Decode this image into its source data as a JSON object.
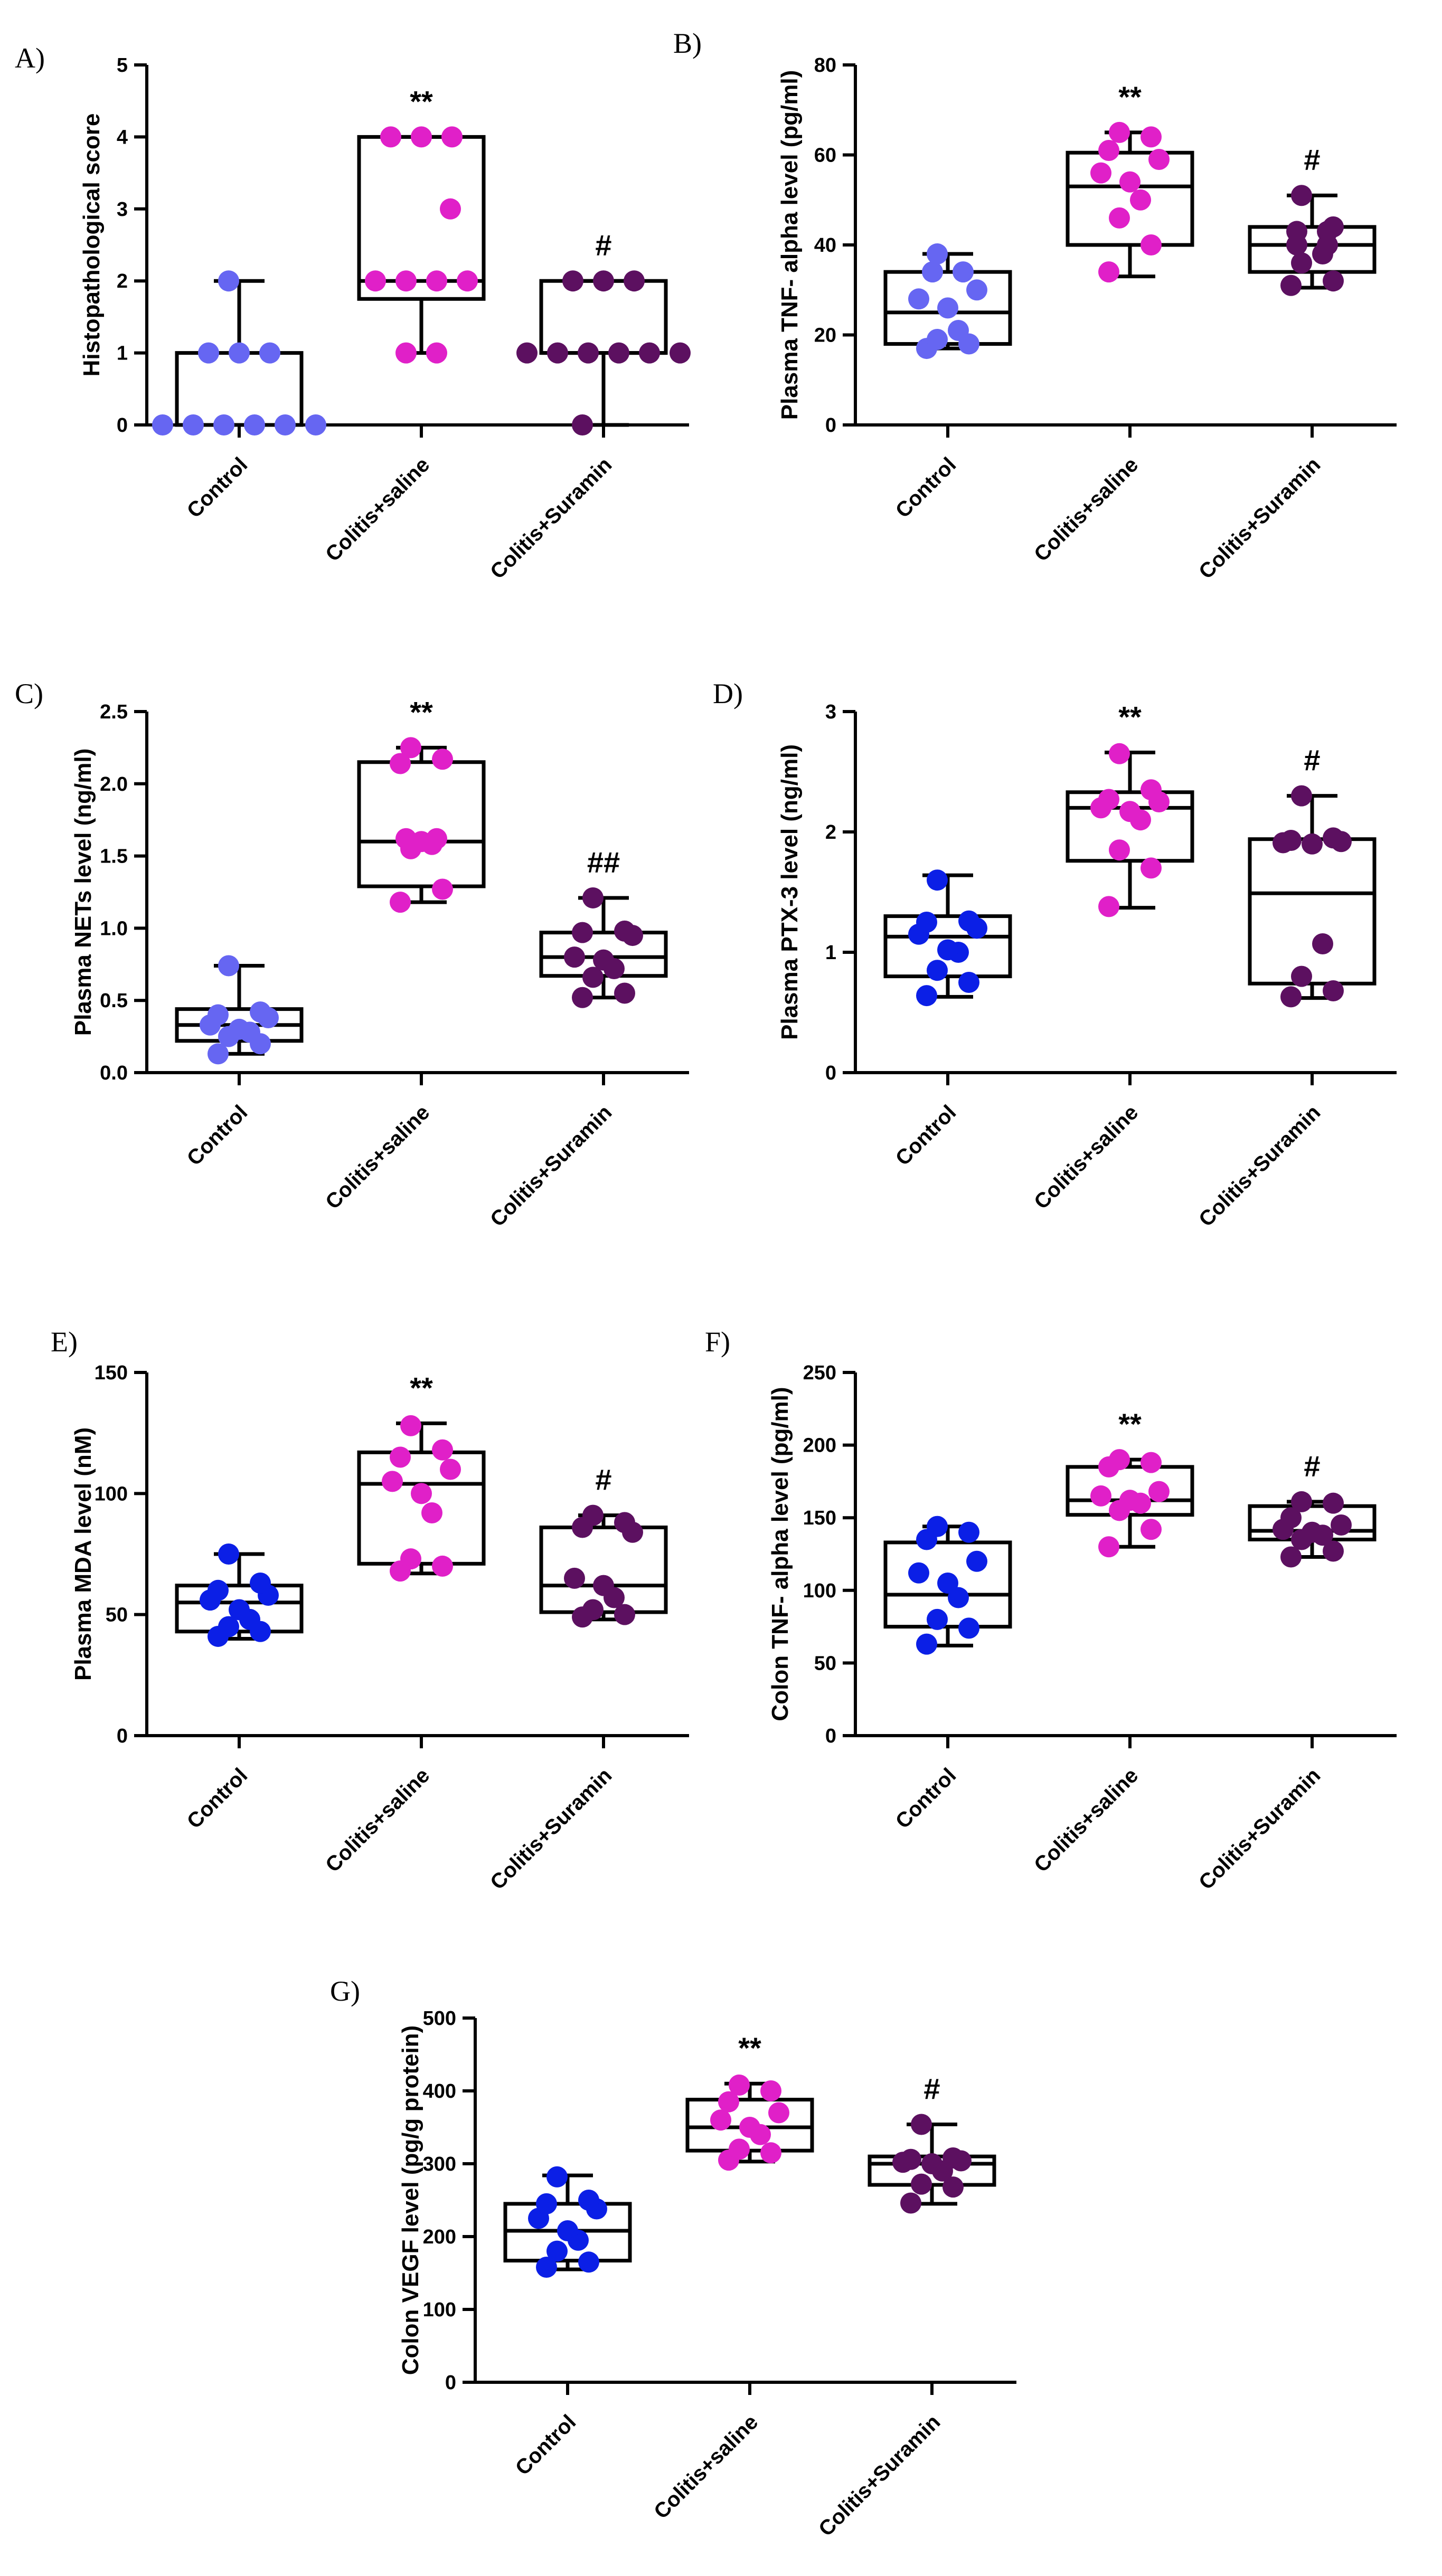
{
  "chart_data": [
    {
      "id": "A",
      "panel_label": "A)",
      "type": "box",
      "ylabel": "Histopathological score",
      "ylim": [
        0,
        5
      ],
      "yticks": [
        0,
        1,
        2,
        3,
        4,
        5
      ],
      "categories": [
        "Control",
        "Colitis+saline",
        "Colitis+Suramin"
      ],
      "colors": [
        "#6666f2",
        "#e020c8",
        "#5c1060"
      ],
      "significance": [
        "",
        "**",
        "#"
      ],
      "boxes": [
        {
          "min": 0,
          "q1": 0,
          "median": 0,
          "q3": 1,
          "max": 2
        },
        {
          "min": 1,
          "q1": 1.75,
          "median": 2,
          "q3": 4,
          "max": 4
        },
        {
          "min": 0,
          "q1": 1,
          "median": 1,
          "q3": 2,
          "max": 2
        }
      ],
      "points": [
        [
          0,
          0,
          0,
          0,
          0,
          0,
          1,
          1,
          1,
          2
        ],
        [
          1,
          1,
          2,
          2,
          2,
          2,
          3,
          4,
          4,
          4
        ],
        [
          0,
          1,
          1,
          1,
          1,
          1,
          1,
          2,
          2,
          2
        ]
      ]
    },
    {
      "id": "B",
      "panel_label": "B)",
      "type": "box",
      "ylabel": "Plasma TNF- alpha level (pg/ml)",
      "ylim": [
        0,
        80
      ],
      "yticks": [
        0,
        20,
        40,
        60,
        80
      ],
      "categories": [
        "Control",
        "Colitis+saline",
        "Colitis+Suramin"
      ],
      "colors": [
        "#6666f2",
        "#e020c8",
        "#5c1060"
      ],
      "significance": [
        "",
        "**",
        "#"
      ],
      "boxes": [
        {
          "min": 17,
          "q1": 18,
          "median": 25,
          "q3": 34,
          "max": 38
        },
        {
          "min": 33,
          "q1": 40,
          "median": 53,
          "q3": 60.5,
          "max": 65
        },
        {
          "min": 30.5,
          "q1": 34,
          "median": 40,
          "q3": 44,
          "max": 51
        }
      ],
      "points": [
        [
          17,
          18,
          19,
          21,
          26,
          28,
          30,
          34,
          34,
          38
        ],
        [
          34,
          40,
          46,
          50,
          54,
          56,
          59,
          61,
          64,
          65
        ],
        [
          31,
          32,
          36,
          38,
          40,
          40,
          43,
          43,
          44,
          51
        ]
      ]
    },
    {
      "id": "C",
      "panel_label": "C)",
      "type": "box",
      "ylabel": "Plasma NETs level (ng/ml)",
      "ylim": [
        0,
        2.5
      ],
      "yticks": [
        0.0,
        0.5,
        1.0,
        1.5,
        2.0,
        2.5
      ],
      "categories": [
        "Control",
        "Colitis+saline",
        "Colitis+Suramin"
      ],
      "colors": [
        "#6666f2",
        "#e020c8",
        "#5c1060"
      ],
      "significance": [
        "",
        "**",
        "##"
      ],
      "boxes": [
        {
          "min": 0.13,
          "q1": 0.22,
          "median": 0.33,
          "q3": 0.44,
          "max": 0.74
        },
        {
          "min": 1.18,
          "q1": 1.29,
          "median": 1.6,
          "q3": 2.15,
          "max": 2.25
        },
        {
          "min": 0.52,
          "q1": 0.67,
          "median": 0.8,
          "q3": 0.97,
          "max": 1.21
        }
      ],
      "points": [
        [
          0.13,
          0.2,
          0.25,
          0.28,
          0.3,
          0.33,
          0.38,
          0.4,
          0.42,
          0.74
        ],
        [
          1.18,
          1.27,
          1.55,
          1.58,
          1.6,
          1.62,
          1.62,
          2.14,
          2.17,
          2.25
        ],
        [
          0.52,
          0.55,
          0.66,
          0.72,
          0.78,
          0.8,
          0.95,
          0.97,
          0.98,
          1.21
        ]
      ]
    },
    {
      "id": "D",
      "panel_label": "D)",
      "type": "box",
      "ylabel": "Plasma PTX-3 level (ng/ml)",
      "ylim": [
        0,
        3
      ],
      "yticks": [
        0,
        1,
        2,
        3
      ],
      "categories": [
        "Control",
        "Colitis+saline",
        "Colitis+Suramin"
      ],
      "colors": [
        "#0b1fe6",
        "#e020c8",
        "#5c1060"
      ],
      "significance": [
        "",
        "**",
        "#"
      ],
      "boxes": [
        {
          "min": 0.63,
          "q1": 0.8,
          "median": 1.13,
          "q3": 1.3,
          "max": 1.64
        },
        {
          "min": 1.37,
          "q1": 1.76,
          "median": 2.2,
          "q3": 2.33,
          "max": 2.66
        },
        {
          "min": 0.62,
          "q1": 0.74,
          "median": 1.49,
          "q3": 1.94,
          "max": 2.3
        }
      ],
      "points": [
        [
          0.64,
          0.75,
          0.85,
          1.0,
          1.02,
          1.15,
          1.2,
          1.25,
          1.26,
          1.6
        ],
        [
          1.38,
          1.7,
          1.85,
          2.1,
          2.17,
          2.2,
          2.25,
          2.27,
          2.35,
          2.65
        ],
        [
          0.63,
          0.68,
          0.8,
          1.07,
          1.9,
          1.91,
          1.92,
          1.93,
          1.95,
          2.3
        ]
      ]
    },
    {
      "id": "E",
      "panel_label": "E)",
      "type": "box",
      "ylabel": "Plasma MDA level (nM)",
      "ylim": [
        0,
        150
      ],
      "yticks": [
        0,
        50,
        100,
        150
      ],
      "categories": [
        "Control",
        "Colitis+saline",
        "Colitis+Suramin"
      ],
      "colors": [
        "#0b1fe6",
        "#e020c8",
        "#5c1060"
      ],
      "significance": [
        "",
        "**",
        "#"
      ],
      "boxes": [
        {
          "min": 40,
          "q1": 43,
          "median": 55,
          "q3": 62,
          "max": 75
        },
        {
          "min": 67,
          "q1": 71,
          "median": 104,
          "q3": 117,
          "max": 129
        },
        {
          "min": 48,
          "q1": 51,
          "median": 62,
          "q3": 86,
          "max": 91
        }
      ],
      "points": [
        [
          41,
          43,
          45,
          48,
          52,
          56,
          58,
          60,
          63,
          75
        ],
        [
          68,
          70,
          73,
          92,
          100,
          105,
          110,
          115,
          118,
          128
        ],
        [
          49,
          50,
          52,
          57,
          62,
          65,
          84,
          86,
          88,
          91
        ]
      ]
    },
    {
      "id": "F",
      "panel_label": "F)",
      "type": "box",
      "ylabel": "Colon TNF- alpha level (pg/ml)",
      "ylim": [
        0,
        250
      ],
      "yticks": [
        0,
        50,
        100,
        150,
        200,
        250
      ],
      "categories": [
        "Control",
        "Colitis+saline",
        "Colitis+Suramin"
      ],
      "colors": [
        "#0b1fe6",
        "#e020c8",
        "#5c1060"
      ],
      "significance": [
        "",
        "**",
        "#"
      ],
      "boxes": [
        {
          "min": 62,
          "q1": 75,
          "median": 97,
          "q3": 133,
          "max": 144
        },
        {
          "min": 130,
          "q1": 152,
          "median": 162,
          "q3": 185,
          "max": 190
        },
        {
          "min": 123,
          "q1": 135,
          "median": 141,
          "q3": 158,
          "max": 161
        }
      ],
      "points": [
        [
          63,
          74,
          80,
          95,
          105,
          112,
          120,
          135,
          140,
          144
        ],
        [
          130,
          142,
          155,
          160,
          162,
          165,
          168,
          185,
          188,
          190
        ],
        [
          123,
          127,
          135,
          138,
          140,
          142,
          145,
          150,
          160,
          161
        ]
      ]
    },
    {
      "id": "G",
      "panel_label": "G)",
      "type": "box",
      "ylabel": "Colon VEGF level (pg/g protein)",
      "ylim": [
        0,
        500
      ],
      "yticks": [
        0,
        100,
        200,
        300,
        400,
        500
      ],
      "categories": [
        "Control",
        "Colitis+saline",
        "Colitis+Suramin"
      ],
      "colors": [
        "#0b1fe6",
        "#e020c8",
        "#5c1060"
      ],
      "significance": [
        "",
        "**",
        "#"
      ],
      "boxes": [
        {
          "min": 155,
          "q1": 167,
          "median": 208,
          "q3": 245,
          "max": 284
        },
        {
          "min": 303,
          "q1": 318,
          "median": 350,
          "q3": 388,
          "max": 410
        },
        {
          "min": 245,
          "q1": 271,
          "median": 300,
          "q3": 310,
          "max": 354
        }
      ],
      "points": [
        [
          158,
          165,
          180,
          195,
          208,
          225,
          238,
          245,
          250,
          282
        ],
        [
          305,
          315,
          320,
          340,
          350,
          360,
          370,
          385,
          400,
          408
        ],
        [
          246,
          268,
          272,
          290,
          300,
          302,
          304,
          306,
          308,
          354
        ]
      ]
    }
  ]
}
